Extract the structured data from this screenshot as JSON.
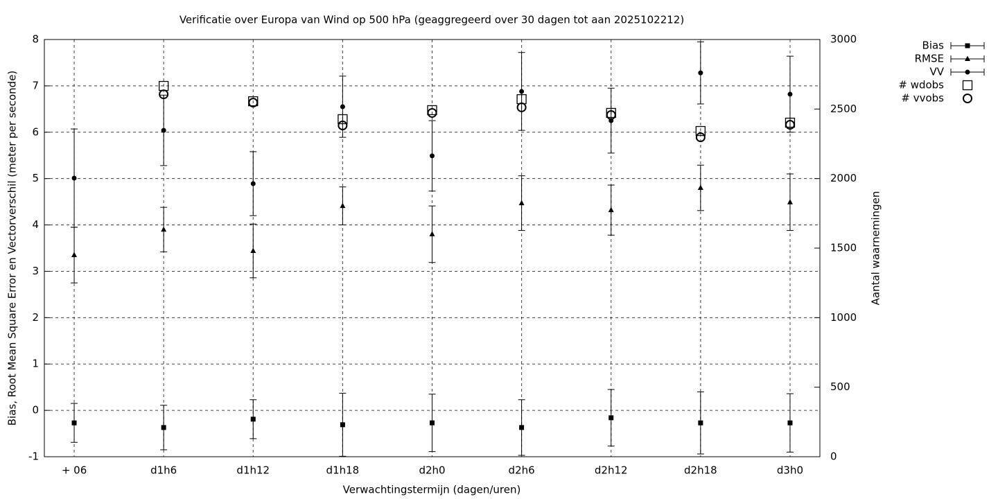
{
  "chart_data": {
    "type": "errorbar",
    "title": "Verificatie over Europa van Wind op 500 hPa (geaggregeerd over 30 dagen tot aan 2025102212)",
    "x_label": "Verwachtingstermijn (dagen/uren)",
    "y_label": "Bias, Root Mean Square Error en Vectorverschil (meter per seconde)",
    "y2_label": "Aantal waarnemingen",
    "categories": [
      "+ 06",
      "d1h6",
      "d1h12",
      "d1h18",
      "d2h0",
      "d2h6",
      "d2h12",
      "d2h18",
      "d3h0"
    ],
    "ylim": [
      -1,
      8
    ],
    "yticks": [
      -1,
      0,
      1,
      2,
      3,
      4,
      5,
      6,
      7,
      8
    ],
    "y2lim": [
      0,
      3000
    ],
    "y2ticks": [
      0,
      500,
      1000,
      1500,
      2000,
      2500,
      3000
    ],
    "grid": true,
    "legend": "outside-right",
    "series": [
      {
        "name": "Bias",
        "color": "#000000",
        "marker": "square",
        "values": [
          -0.27,
          -0.37,
          -0.19,
          -0.31,
          -0.27,
          -0.37,
          -0.16,
          -0.27,
          -0.27
        ],
        "errors": [
          0.42,
          0.48,
          0.42,
          0.68,
          0.62,
          0.6,
          0.61,
          0.67,
          0.63
        ]
      },
      {
        "name": "RMSE",
        "color": "#000000",
        "marker": "triangle",
        "values": [
          3.35,
          3.9,
          3.44,
          4.41,
          3.8,
          4.47,
          4.32,
          4.8,
          4.49
        ],
        "errors": [
          0.6,
          0.48,
          0.58,
          0.41,
          0.61,
          0.59,
          0.54,
          0.49,
          0.61
        ]
      },
      {
        "name": "VV",
        "color": "#000000",
        "marker": "circle",
        "values": [
          5.01,
          6.04,
          4.89,
          6.55,
          5.49,
          6.88,
          6.25,
          7.28,
          6.82
        ],
        "errors": [
          1.06,
          0.76,
          0.69,
          0.66,
          0.76,
          0.84,
          0.7,
          0.67,
          0.82
        ]
      },
      {
        "name": "# wdobs",
        "color": "#000000",
        "marker": "open-square",
        "axis": "y2",
        "values": [
          null,
          2666,
          2556,
          2427,
          2492,
          2571,
          2472,
          2342,
          2402
        ]
      },
      {
        "name": "# vvobs",
        "color": "#000000",
        "marker": "open-circle",
        "axis": "y2",
        "values": [
          null,
          2606,
          2546,
          2382,
          2472,
          2512,
          2457,
          2297,
          2387
        ]
      }
    ]
  }
}
